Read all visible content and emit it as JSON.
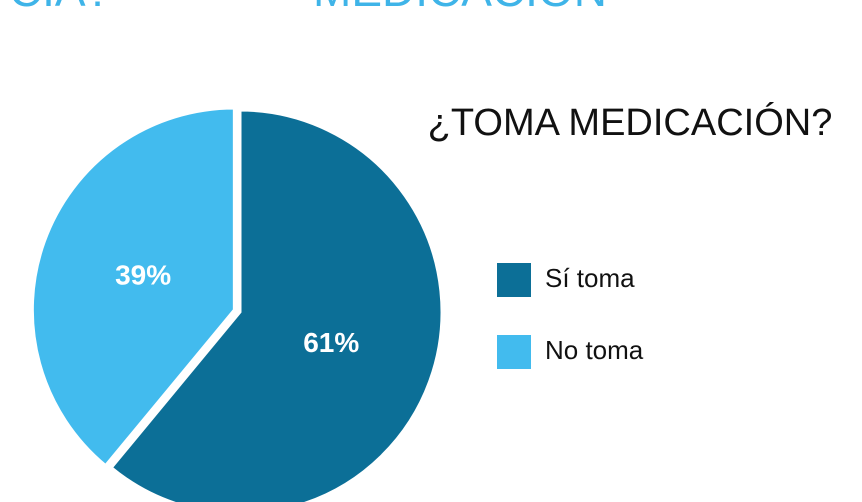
{
  "header": {
    "left": "CIA?",
    "right": "MEDICACIÓN"
  },
  "chart_data": {
    "type": "pie",
    "title": "¿TOMA MEDICACIÓN?",
    "categories": [
      "Sí toma",
      "No toma"
    ],
    "values": [
      61,
      39
    ],
    "value_labels": [
      "61%",
      "39%"
    ],
    "colors": [
      "#0c6f97",
      "#42bbee"
    ],
    "legend": "right"
  }
}
